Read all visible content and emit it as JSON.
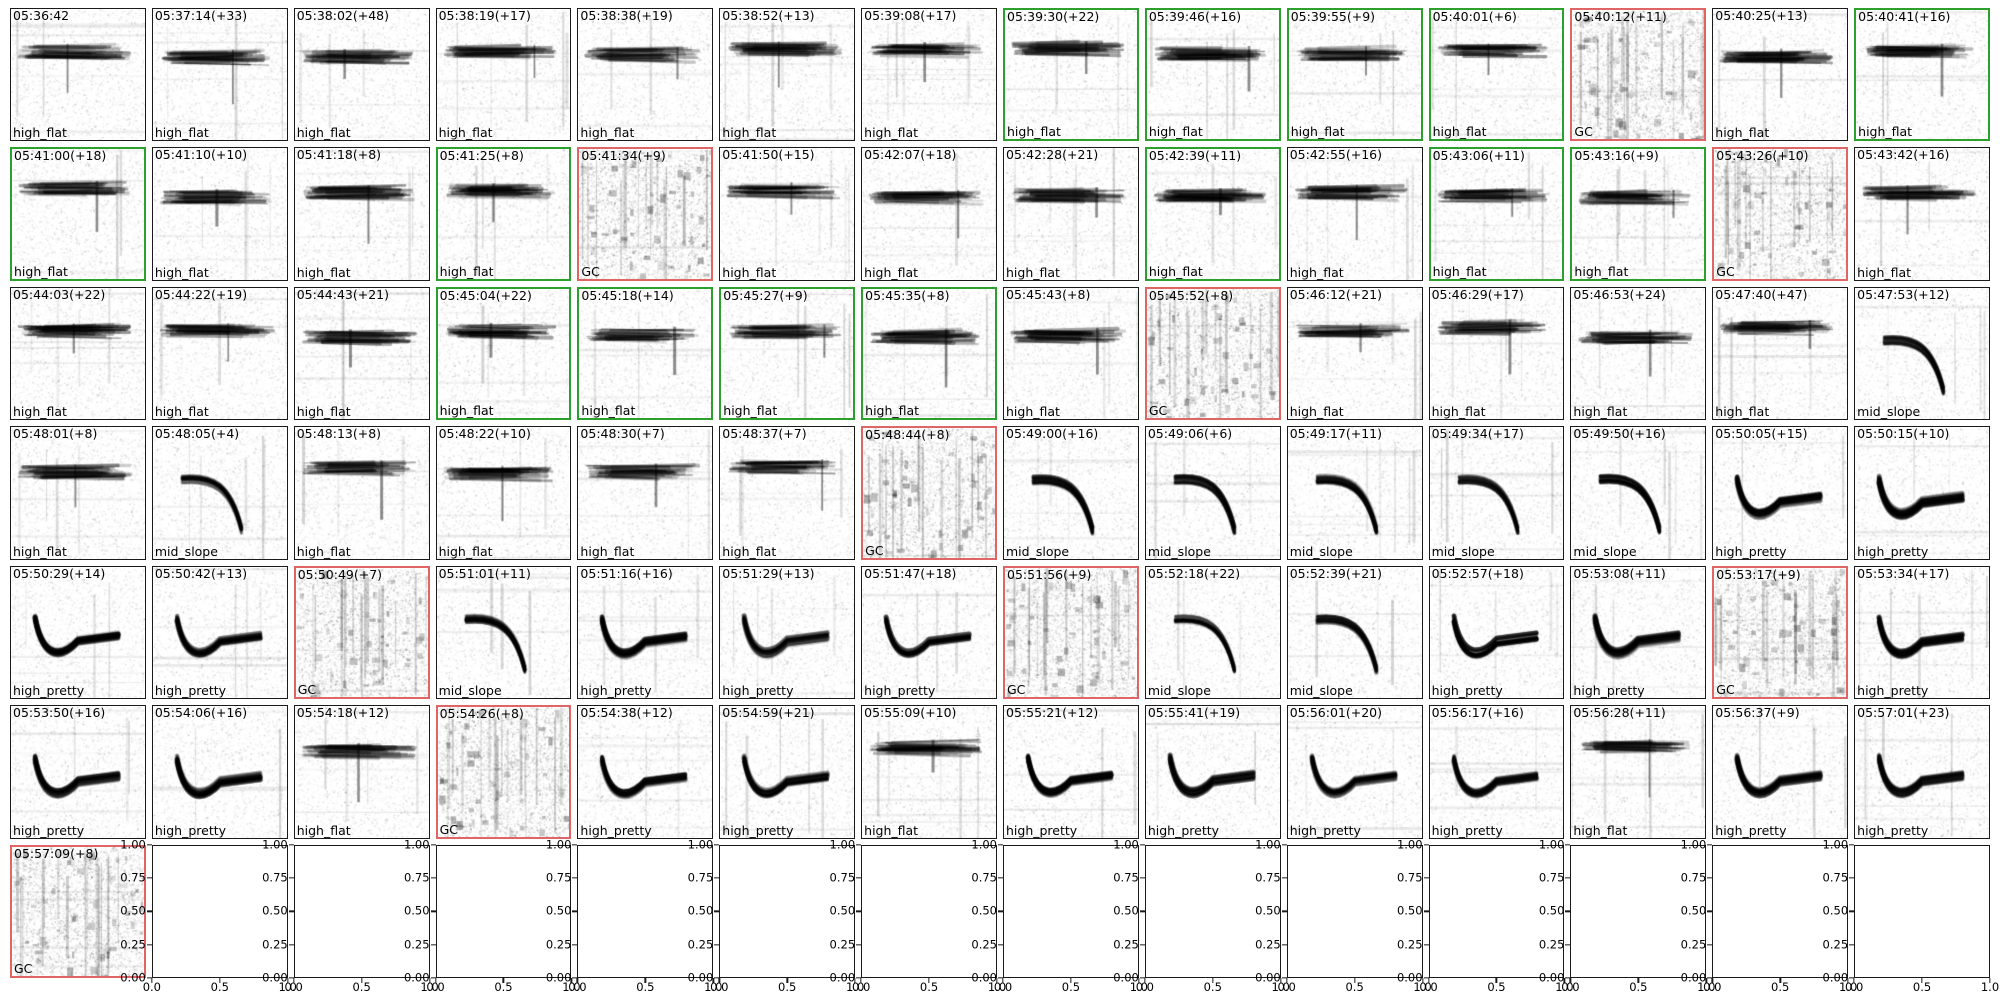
{
  "colors": {
    "frame_default": "#1a1a1a",
    "frame_correct": "#2ca02c",
    "frame_error": "#e06666",
    "text": "#000000",
    "background": "#ffffff"
  },
  "chart_data": {
    "type": "table",
    "title": "",
    "description": "7x14 grid of spectrogram thumbnails of vocalization clips. Each thumbnail shows a clock time with gap seconds in parentheses (top-left) and a class label (bottom-left). Green frames mark selected clips, red frames mark GC (noise) clips. The last row contains 13 empty subplots with default 0-1 axes.",
    "n_rows": 7,
    "n_columns": 14,
    "empty_axes": {
      "y_ticks": [
        "1.00",
        "0.75",
        "0.50",
        "0.25",
        "0.00"
      ],
      "x_ticks": [
        "0.0",
        "0.5",
        "1.0"
      ]
    },
    "cells": [
      {
        "kind": "spec",
        "time": "05:36:42",
        "label": "high_flat",
        "frame": "default"
      },
      {
        "kind": "spec",
        "time": "05:37:14(+33)",
        "label": "high_flat",
        "frame": "default"
      },
      {
        "kind": "spec",
        "time": "05:38:02(+48)",
        "label": "high_flat",
        "frame": "default"
      },
      {
        "kind": "spec",
        "time": "05:38:19(+17)",
        "label": "high_flat",
        "frame": "default"
      },
      {
        "kind": "spec",
        "time": "05:38:38(+19)",
        "label": "high_flat",
        "frame": "default"
      },
      {
        "kind": "spec",
        "time": "05:38:52(+13)",
        "label": "high_flat",
        "frame": "default"
      },
      {
        "kind": "spec",
        "time": "05:39:08(+17)",
        "label": "high_flat",
        "frame": "default"
      },
      {
        "kind": "spec",
        "time": "05:39:30(+22)",
        "label": "high_flat",
        "frame": "green"
      },
      {
        "kind": "spec",
        "time": "05:39:46(+16)",
        "label": "high_flat",
        "frame": "green"
      },
      {
        "kind": "spec",
        "time": "05:39:55(+9)",
        "label": "high_flat",
        "frame": "green"
      },
      {
        "kind": "spec",
        "time": "05:40:01(+6)",
        "label": "high_flat",
        "frame": "green"
      },
      {
        "kind": "spec",
        "time": "05:40:12(+11)",
        "label": "GC",
        "frame": "red"
      },
      {
        "kind": "spec",
        "time": "05:40:25(+13)",
        "label": "high_flat",
        "frame": "default"
      },
      {
        "kind": "spec",
        "time": "05:40:41(+16)",
        "label": "high_flat",
        "frame": "green"
      },
      {
        "kind": "spec",
        "time": "05:41:00(+18)",
        "label": "high_flat",
        "frame": "green"
      },
      {
        "kind": "spec",
        "time": "05:41:10(+10)",
        "label": "high_flat",
        "frame": "default"
      },
      {
        "kind": "spec",
        "time": "05:41:18(+8)",
        "label": "high_flat",
        "frame": "default"
      },
      {
        "kind": "spec",
        "time": "05:41:25(+8)",
        "label": "high_flat",
        "frame": "green"
      },
      {
        "kind": "spec",
        "time": "05:41:34(+9)",
        "label": "GC",
        "frame": "red"
      },
      {
        "kind": "spec",
        "time": "05:41:50(+15)",
        "label": "high_flat",
        "frame": "default"
      },
      {
        "kind": "spec",
        "time": "05:42:07(+18)",
        "label": "high_flat",
        "frame": "default"
      },
      {
        "kind": "spec",
        "time": "05:42:28(+21)",
        "label": "high_flat",
        "frame": "default"
      },
      {
        "kind": "spec",
        "time": "05:42:39(+11)",
        "label": "high_flat",
        "frame": "green"
      },
      {
        "kind": "spec",
        "time": "05:42:55(+16)",
        "label": "high_flat",
        "frame": "default"
      },
      {
        "kind": "spec",
        "time": "05:43:06(+11)",
        "label": "high_flat",
        "frame": "green"
      },
      {
        "kind": "spec",
        "time": "05:43:16(+9)",
        "label": "high_flat",
        "frame": "green"
      },
      {
        "kind": "spec",
        "time": "05:43:26(+10)",
        "label": "GC",
        "frame": "red"
      },
      {
        "kind": "spec",
        "time": "05:43:42(+16)",
        "label": "high_flat",
        "frame": "default"
      },
      {
        "kind": "spec",
        "time": "05:44:03(+22)",
        "label": "high_flat",
        "frame": "default"
      },
      {
        "kind": "spec",
        "time": "05:44:22(+19)",
        "label": "high_flat",
        "frame": "default"
      },
      {
        "kind": "spec",
        "time": "05:44:43(+21)",
        "label": "high_flat",
        "frame": "default"
      },
      {
        "kind": "spec",
        "time": "05:45:04(+22)",
        "label": "high_flat",
        "frame": "green"
      },
      {
        "kind": "spec",
        "time": "05:45:18(+14)",
        "label": "high_flat",
        "frame": "green"
      },
      {
        "kind": "spec",
        "time": "05:45:27(+9)",
        "label": "high_flat",
        "frame": "green"
      },
      {
        "kind": "spec",
        "time": "05:45:35(+8)",
        "label": "high_flat",
        "frame": "green"
      },
      {
        "kind": "spec",
        "time": "05:45:43(+8)",
        "label": "high_flat",
        "frame": "default"
      },
      {
        "kind": "spec",
        "time": "05:45:52(+8)",
        "label": "GC",
        "frame": "red"
      },
      {
        "kind": "spec",
        "time": "05:46:12(+21)",
        "label": "high_flat",
        "frame": "default"
      },
      {
        "kind": "spec",
        "time": "05:46:29(+17)",
        "label": "high_flat",
        "frame": "default"
      },
      {
        "kind": "spec",
        "time": "05:46:53(+24)",
        "label": "high_flat",
        "frame": "default"
      },
      {
        "kind": "spec",
        "time": "05:47:40(+47)",
        "label": "high_flat",
        "frame": "default"
      },
      {
        "kind": "spec",
        "time": "05:47:53(+12)",
        "label": "mid_slope",
        "frame": "default"
      },
      {
        "kind": "spec",
        "time": "05:48:01(+8)",
        "label": "high_flat",
        "frame": "default"
      },
      {
        "kind": "spec",
        "time": "05:48:05(+4)",
        "label": "mid_slope",
        "frame": "default"
      },
      {
        "kind": "spec",
        "time": "05:48:13(+8)",
        "label": "high_flat",
        "frame": "default"
      },
      {
        "kind": "spec",
        "time": "05:48:22(+10)",
        "label": "high_flat",
        "frame": "default"
      },
      {
        "kind": "spec",
        "time": "05:48:30(+7)",
        "label": "high_flat",
        "frame": "default"
      },
      {
        "kind": "spec",
        "time": "05:48:37(+7)",
        "label": "high_flat",
        "frame": "default"
      },
      {
        "kind": "spec",
        "time": "05:48:44(+8)",
        "label": "GC",
        "frame": "red"
      },
      {
        "kind": "spec",
        "time": "05:49:00(+16)",
        "label": "mid_slope",
        "frame": "default"
      },
      {
        "kind": "spec",
        "time": "05:49:06(+6)",
        "label": "mid_slope",
        "frame": "default"
      },
      {
        "kind": "spec",
        "time": "05:49:17(+11)",
        "label": "mid_slope",
        "frame": "default"
      },
      {
        "kind": "spec",
        "time": "05:49:34(+17)",
        "label": "mid_slope",
        "frame": "default"
      },
      {
        "kind": "spec",
        "time": "05:49:50(+16)",
        "label": "mid_slope",
        "frame": "default"
      },
      {
        "kind": "spec",
        "time": "05:50:05(+15)",
        "label": "high_pretty",
        "frame": "default"
      },
      {
        "kind": "spec",
        "time": "05:50:15(+10)",
        "label": "high_pretty",
        "frame": "default"
      },
      {
        "kind": "spec",
        "time": "05:50:29(+14)",
        "label": "high_pretty",
        "frame": "default"
      },
      {
        "kind": "spec",
        "time": "05:50:42(+13)",
        "label": "high_pretty",
        "frame": "default"
      },
      {
        "kind": "spec",
        "time": "05:50:49(+7)",
        "label": "GC",
        "frame": "red"
      },
      {
        "kind": "spec",
        "time": "05:51:01(+11)",
        "label": "mid_slope",
        "frame": "default"
      },
      {
        "kind": "spec",
        "time": "05:51:16(+16)",
        "label": "high_pretty",
        "frame": "default"
      },
      {
        "kind": "spec",
        "time": "05:51:29(+13)",
        "label": "high_pretty",
        "frame": "default"
      },
      {
        "kind": "spec",
        "time": "05:51:47(+18)",
        "label": "high_pretty",
        "frame": "default"
      },
      {
        "kind": "spec",
        "time": "05:51:56(+9)",
        "label": "GC",
        "frame": "red"
      },
      {
        "kind": "spec",
        "time": "05:52:18(+22)",
        "label": "mid_slope",
        "frame": "default"
      },
      {
        "kind": "spec",
        "time": "05:52:39(+21)",
        "label": "mid_slope",
        "frame": "default"
      },
      {
        "kind": "spec",
        "time": "05:52:57(+18)",
        "label": "high_pretty",
        "frame": "default"
      },
      {
        "kind": "spec",
        "time": "05:53:08(+11)",
        "label": "high_pretty",
        "frame": "default"
      },
      {
        "kind": "spec",
        "time": "05:53:17(+9)",
        "label": "GC",
        "frame": "red"
      },
      {
        "kind": "spec",
        "time": "05:53:34(+17)",
        "label": "high_pretty",
        "frame": "default"
      },
      {
        "kind": "spec",
        "time": "05:53:50(+16)",
        "label": "high_pretty",
        "frame": "default"
      },
      {
        "kind": "spec",
        "time": "05:54:06(+16)",
        "label": "high_pretty",
        "frame": "default"
      },
      {
        "kind": "spec",
        "time": "05:54:18(+12)",
        "label": "high_flat",
        "frame": "default"
      },
      {
        "kind": "spec",
        "time": "05:54:26(+8)",
        "label": "GC",
        "frame": "red"
      },
      {
        "kind": "spec",
        "time": "05:54:38(+12)",
        "label": "high_pretty",
        "frame": "default"
      },
      {
        "kind": "spec",
        "time": "05:54:59(+21)",
        "label": "high_pretty",
        "frame": "default"
      },
      {
        "kind": "spec",
        "time": "05:55:09(+10)",
        "label": "high_flat",
        "frame": "default"
      },
      {
        "kind": "spec",
        "time": "05:55:21(+12)",
        "label": "high_pretty",
        "frame": "default"
      },
      {
        "kind": "spec",
        "time": "05:55:41(+19)",
        "label": "high_pretty",
        "frame": "default"
      },
      {
        "kind": "spec",
        "time": "05:56:01(+20)",
        "label": "high_pretty",
        "frame": "default"
      },
      {
        "kind": "spec",
        "time": "05:56:17(+16)",
        "label": "high_pretty",
        "frame": "default"
      },
      {
        "kind": "spec",
        "time": "05:56:28(+11)",
        "label": "high_flat",
        "frame": "default"
      },
      {
        "kind": "spec",
        "time": "05:56:37(+9)",
        "label": "high_pretty",
        "frame": "default"
      },
      {
        "kind": "spec",
        "time": "05:57:01(+23)",
        "label": "high_pretty",
        "frame": "default"
      },
      {
        "kind": "spec",
        "time": "05:57:09(+8)",
        "label": "GC",
        "frame": "red"
      },
      {
        "kind": "empty"
      },
      {
        "kind": "empty"
      },
      {
        "kind": "empty"
      },
      {
        "kind": "empty"
      },
      {
        "kind": "empty"
      },
      {
        "kind": "empty"
      },
      {
        "kind": "empty"
      },
      {
        "kind": "empty"
      },
      {
        "kind": "empty"
      },
      {
        "kind": "empty"
      },
      {
        "kind": "empty"
      },
      {
        "kind": "empty"
      },
      {
        "kind": "empty"
      }
    ]
  }
}
